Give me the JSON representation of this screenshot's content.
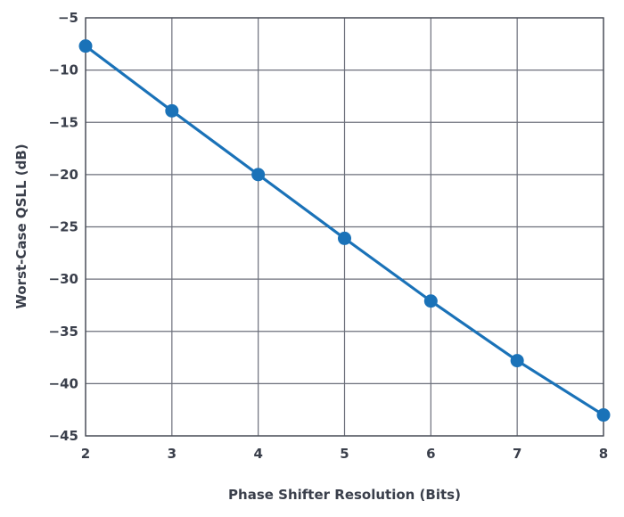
{
  "chart_data": {
    "type": "line",
    "title": "",
    "xlabel": "Phase Shifter Resolution (Bits)",
    "ylabel": "Worst-Case QSLL (dB)",
    "xlim": [
      2,
      8
    ],
    "ylim": [
      -45,
      -5
    ],
    "xticks": [
      2,
      3,
      4,
      5,
      6,
      7,
      8
    ],
    "yticks": [
      -5,
      -10,
      -15,
      -20,
      -25,
      -30,
      -35,
      -40,
      -45
    ],
    "ytick_labels": [
      "−5",
      "−10",
      "−15",
      "−20",
      "−25",
      "−30",
      "−35",
      "−40",
      "−45"
    ],
    "grid": true,
    "series": [
      {
        "x": [
          2,
          3,
          4,
          5,
          6,
          7,
          8
        ],
        "y": [
          -7.7,
          -13.9,
          -20.0,
          -26.1,
          -32.1,
          -37.8,
          -43.0
        ]
      }
    ],
    "colors": {
      "line": "#1a72b8",
      "grid": "#6b6f7a",
      "text": "#3a3f4b"
    }
  }
}
